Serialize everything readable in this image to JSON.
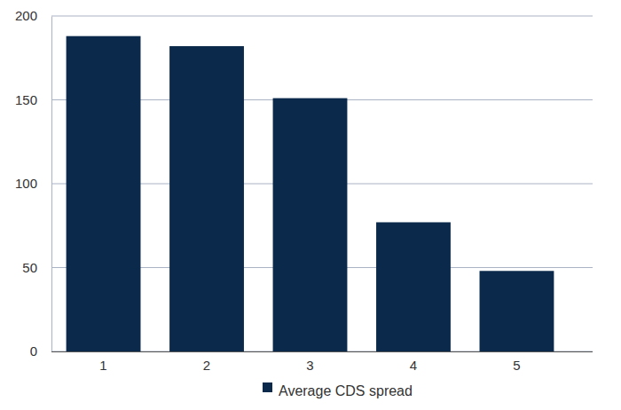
{
  "chart_data": {
    "type": "bar",
    "categories": [
      "1",
      "2",
      "3",
      "4",
      "5"
    ],
    "series": [
      {
        "name": "Average CDS spread",
        "color": "#0b2a4b",
        "values": [
          188,
          182,
          151,
          77,
          48
        ]
      }
    ],
    "ylim": [
      0,
      200
    ],
    "yticks": [
      0,
      50,
      100,
      150,
      200
    ],
    "grid": true,
    "legend": "bottom"
  }
}
